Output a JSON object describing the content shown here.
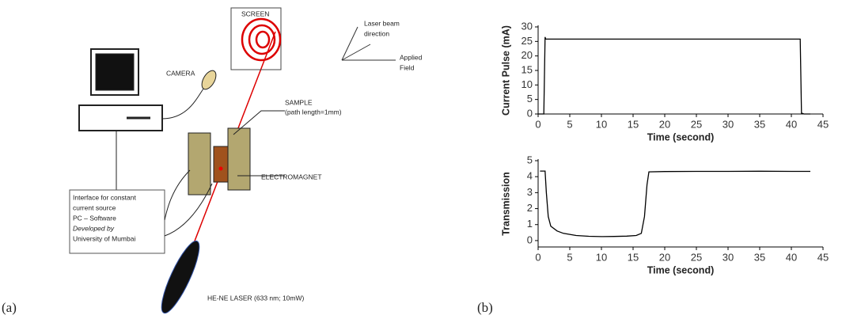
{
  "diagram": {
    "screen": "SCREEN",
    "beam_axis": [
      "Laser beam",
      "direction"
    ],
    "field_axis": [
      "Applied",
      "Field"
    ],
    "camera": "CAMERA",
    "sample": [
      "SAMPLE",
      "(path length=1mm)"
    ],
    "electromagnet": "ELECTROMAGNET",
    "interface": [
      "Interface for constant",
      "current  source",
      "PC – Software",
      "Developed by",
      "University of Mumbai"
    ],
    "laser": "HE-NE LASER (633 nm; 10mW)"
  },
  "panel_labels": [
    "(a)",
    "(b)"
  ],
  "chart_data": [
    {
      "type": "line",
      "xlabel": "Time (second)",
      "ylabel": "Current Pulse (mA)",
      "color": "#000000",
      "x": [
        0,
        0.9,
        1.1,
        1.2,
        1.5,
        5,
        10,
        15,
        20,
        25,
        30,
        35,
        40,
        41.4,
        41.6,
        42,
        43
      ],
      "values": [
        0,
        0,
        26.5,
        25.8,
        25.8,
        25.8,
        25.8,
        25.8,
        25.8,
        25.8,
        25.8,
        25.8,
        25.8,
        25.8,
        0.3,
        0,
        0
      ],
      "xlim": [
        0,
        45
      ],
      "xticks": [
        0,
        5,
        10,
        15,
        20,
        25,
        30,
        35,
        40,
        45
      ],
      "ylim": [
        0,
        30
      ],
      "yticks": [
        0,
        5,
        10,
        15,
        20,
        25,
        30
      ]
    },
    {
      "type": "line",
      "xlabel": "Time (second)",
      "ylabel": "Transmission",
      "color": "#000000",
      "x": [
        0.3,
        1.1,
        1.3,
        1.6,
        2,
        3,
        4,
        6,
        8,
        10,
        12,
        14,
        15.5,
        16.3,
        16.8,
        17.2,
        17.5,
        20,
        25,
        30,
        35,
        40,
        43
      ],
      "values": [
        4.35,
        4.35,
        3,
        1.5,
        0.9,
        0.6,
        0.45,
        0.32,
        0.27,
        0.25,
        0.26,
        0.28,
        0.32,
        0.45,
        1.5,
        3.5,
        4.3,
        4.32,
        4.33,
        4.33,
        4.34,
        4.33,
        4.33
      ],
      "xlim": [
        0,
        45
      ],
      "xticks": [
        0,
        5,
        10,
        15,
        20,
        25,
        30,
        35,
        40,
        45
      ],
      "ylim": [
        -0.4,
        5
      ],
      "yticks": [
        0,
        1,
        2,
        3,
        4,
        5
      ]
    }
  ]
}
